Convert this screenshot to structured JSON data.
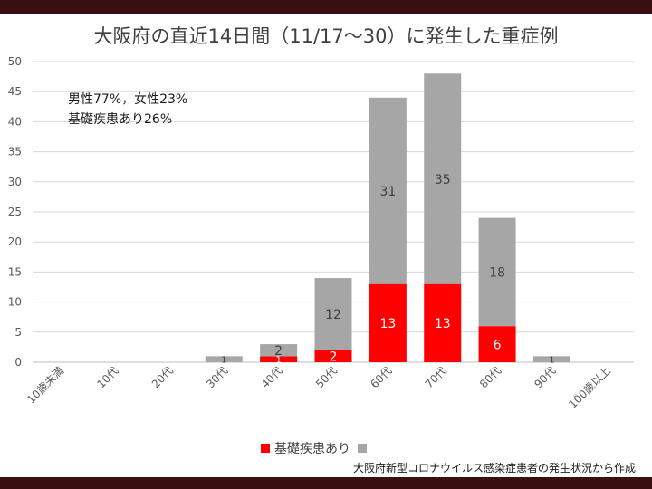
{
  "title": "大阪府の直近14日間（11/17〜30）に発生した重症例",
  "notes": [
    "男性77%，女性23%",
    "基礎疾患あり26%"
  ],
  "source": "大阪府新型コロナウイルス感染症患者の発生状況から作成",
  "colors": {
    "red": "#ff0000",
    "gray": "#a6a6a6",
    "frame": "#3a0f12"
  },
  "chart_data": {
    "type": "bar",
    "stacked": true,
    "categories": [
      "10歳未満",
      "10代",
      "20代",
      "30代",
      "40代",
      "50代",
      "60代",
      "70代",
      "80代",
      "90代",
      "100歳以上"
    ],
    "series": [
      {
        "name": "基礎疾患あり",
        "color": "#ff0000",
        "values": [
          0,
          0,
          0,
          0,
          1,
          2,
          13,
          13,
          6,
          0,
          0
        ]
      },
      {
        "name": "",
        "color": "#a6a6a6",
        "values": [
          0,
          0,
          0,
          1,
          2,
          12,
          31,
          35,
          18,
          1,
          0
        ]
      }
    ],
    "ylim": [
      0,
      50
    ],
    "yticks": [
      0,
      5,
      10,
      15,
      20,
      25,
      30,
      35,
      40,
      45,
      50
    ],
    "grid": true,
    "legend_position": "bottom",
    "xlabel": "",
    "ylabel": ""
  }
}
